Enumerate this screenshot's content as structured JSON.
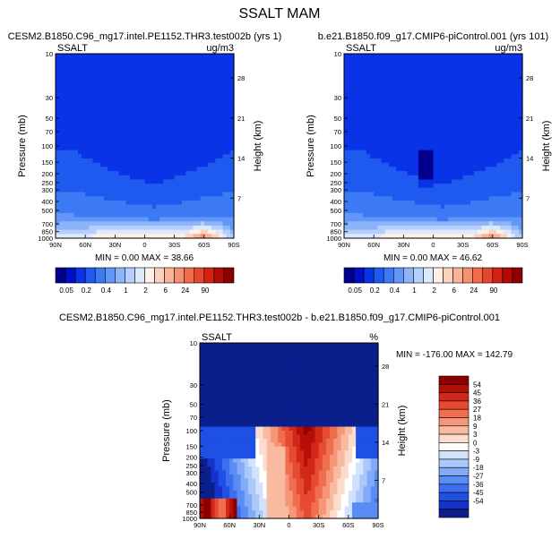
{
  "figure": {
    "title": "SSALT MAM",
    "diff_title": "CESM2.B1850.C96_mg17.intel.PE1152.THR3.test002b - b.e21.B1850.f09_g17.CMIP6-piControl.001"
  },
  "colors": {
    "levels": [
      "#00008c",
      "#0010c8",
      "#0a32e6",
      "#1e5af0",
      "#3c7af5",
      "#6496f8",
      "#8cb4fa",
      "#b4cffc",
      "#dce8fe",
      "#fff0e6",
      "#fcd2be",
      "#f8b496",
      "#f5916e",
      "#f06c4b",
      "#e6462d",
      "#d22314",
      "#b40a05",
      "#8c0000"
    ]
  },
  "chart_data": [
    {
      "type": "contour",
      "id": "test",
      "title": "CESM2.B1850.C96_mg17.intel.PE1152.THR3.test002b (yrs 1)",
      "left_label": "SSALT",
      "right_label": "ug/m3",
      "ylabel": "Pressure (mb)",
      "ylabel_right": "Height (km)",
      "x_ticks": [
        "90N",
        "60N",
        "30N",
        "0",
        "30S",
        "60S",
        "90S"
      ],
      "y_ticks": [
        10,
        30,
        50,
        70,
        100,
        150,
        200,
        250,
        300,
        400,
        500,
        700,
        850,
        1000
      ],
      "ylim": [
        10,
        1000
      ],
      "y_scale": "log",
      "height_ticks": [
        28,
        21,
        14,
        7
      ],
      "min_max_text": "MIN =   0.00   MAX =  38.66",
      "colorbar": {
        "orientation": "horizontal",
        "labels": [
          "0.05",
          "0.2",
          "0.4",
          "1",
          "2",
          "6",
          "24",
          "90"
        ]
      }
    },
    {
      "type": "contour",
      "id": "ctrl",
      "title": "b.e21.B1850.f09_g17.CMIP6-piControl.001 (yrs 101)",
      "left_label": "SSALT",
      "right_label": "ug/m3",
      "ylabel": "Pressure (mb)",
      "ylabel_right": "Height (km)",
      "x_ticks": [
        "90N",
        "60N",
        "30N",
        "0",
        "30S",
        "60S",
        "90S"
      ],
      "y_ticks": [
        10,
        30,
        50,
        70,
        100,
        150,
        200,
        250,
        300,
        400,
        500,
        700,
        850,
        1000
      ],
      "ylim": [
        10,
        1000
      ],
      "y_scale": "log",
      "height_ticks": [
        28,
        21,
        14,
        7
      ],
      "min_max_text": "MIN =   0.00   MAX =  46.62",
      "colorbar": {
        "orientation": "horizontal",
        "labels": [
          "0.05",
          "0.2",
          "0.4",
          "1",
          "2",
          "6",
          "24",
          "90"
        ]
      }
    },
    {
      "type": "contour",
      "id": "diff",
      "left_label": "SSALT",
      "right_label": "%",
      "ylabel": "Pressure (mb)",
      "ylabel_right": "Height (km)",
      "x_ticks": [
        "90N",
        "60N",
        "30N",
        "0",
        "30S",
        "60S",
        "90S"
      ],
      "y_ticks": [
        10,
        30,
        50,
        70,
        100,
        150,
        200,
        250,
        300,
        400,
        500,
        700,
        850,
        1000
      ],
      "ylim": [
        10,
        1000
      ],
      "y_scale": "log",
      "height_ticks": [
        28,
        21,
        14,
        7
      ],
      "min_max_text": "MIN = -176.00   MAX = 142.79",
      "colorbar": {
        "orientation": "vertical",
        "labels": [
          "54",
          "45",
          "36",
          "27",
          "18",
          "9",
          "3",
          "0",
          "-3",
          "-9",
          "-18",
          "-27",
          "-36",
          "-45",
          "-54"
        ]
      }
    }
  ]
}
